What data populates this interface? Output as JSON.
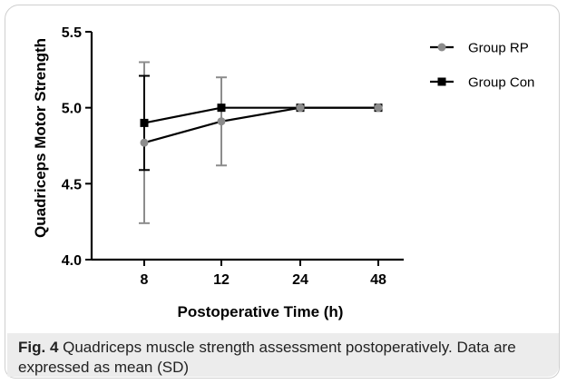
{
  "chart_data": {
    "type": "line",
    "xlabel": "Postoperative Time (h)",
    "ylabel": "Quadriceps Motor Strength",
    "categories": [
      "8",
      "12",
      "24",
      "48"
    ],
    "yticks": [
      "4.0",
      "4.5",
      "5.0",
      "5.5"
    ],
    "ylim": [
      4.0,
      5.5
    ],
    "legend_position": "top-right",
    "series": [
      {
        "name": "Group RP",
        "marker": "circle",
        "color": "#8c8c8c",
        "values": [
          4.77,
          4.91,
          5.0,
          5.0
        ],
        "sd": [
          0.53,
          0.29,
          0,
          0
        ]
      },
      {
        "name": "Group Con",
        "marker": "square",
        "color": "#000000",
        "values": [
          4.9,
          5.0,
          5.0,
          5.0
        ],
        "sd": [
          0.31,
          0,
          0,
          0
        ]
      }
    ]
  },
  "caption": {
    "label": "Fig. 4",
    "text": " Quadriceps muscle strength assessment postoperatively. Data are expressed as mean (SD)"
  }
}
